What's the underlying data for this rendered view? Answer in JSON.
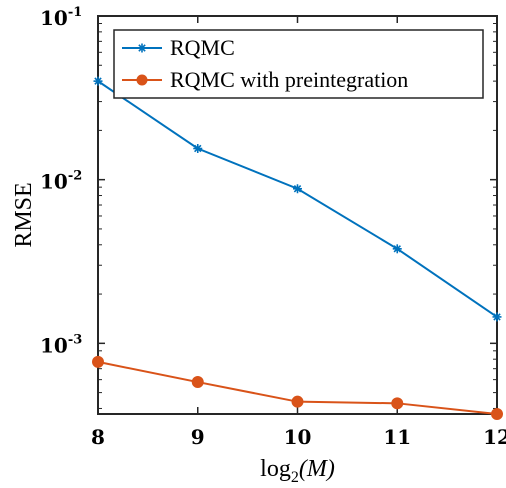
{
  "chart_data": {
    "type": "line",
    "xlabel": "log",
    "xlabel_sub": "2",
    "xlabel_arg": "(M)",
    "ylabel": "RMSE",
    "x": [
      8,
      9,
      10,
      11,
      12
    ],
    "xlim": [
      8,
      12
    ],
    "ylim": [
      0.00037,
      0.1
    ],
    "yscale": "log",
    "x_ticks": [
      "8",
      "9",
      "10",
      "11",
      "12"
    ],
    "y_ticks": [
      {
        "base": "10",
        "exp": "-1",
        "value": 0.1
      },
      {
        "base": "10",
        "exp": "-2",
        "value": 0.01
      },
      {
        "base": "10",
        "exp": "-3",
        "value": 0.001
      }
    ],
    "grid": false,
    "legend_position": "top-right",
    "series": [
      {
        "name": "RQMC",
        "color": "#0072BD",
        "marker": "asterisk",
        "values": [
          0.04,
          0.0155,
          0.0088,
          0.00378,
          0.00145
        ]
      },
      {
        "name": "RQMC with preintegration",
        "color": "#D95319",
        "marker": "circle",
        "values": [
          0.00077,
          0.00058,
          0.00044,
          0.00043,
          0.00037
        ]
      }
    ]
  }
}
